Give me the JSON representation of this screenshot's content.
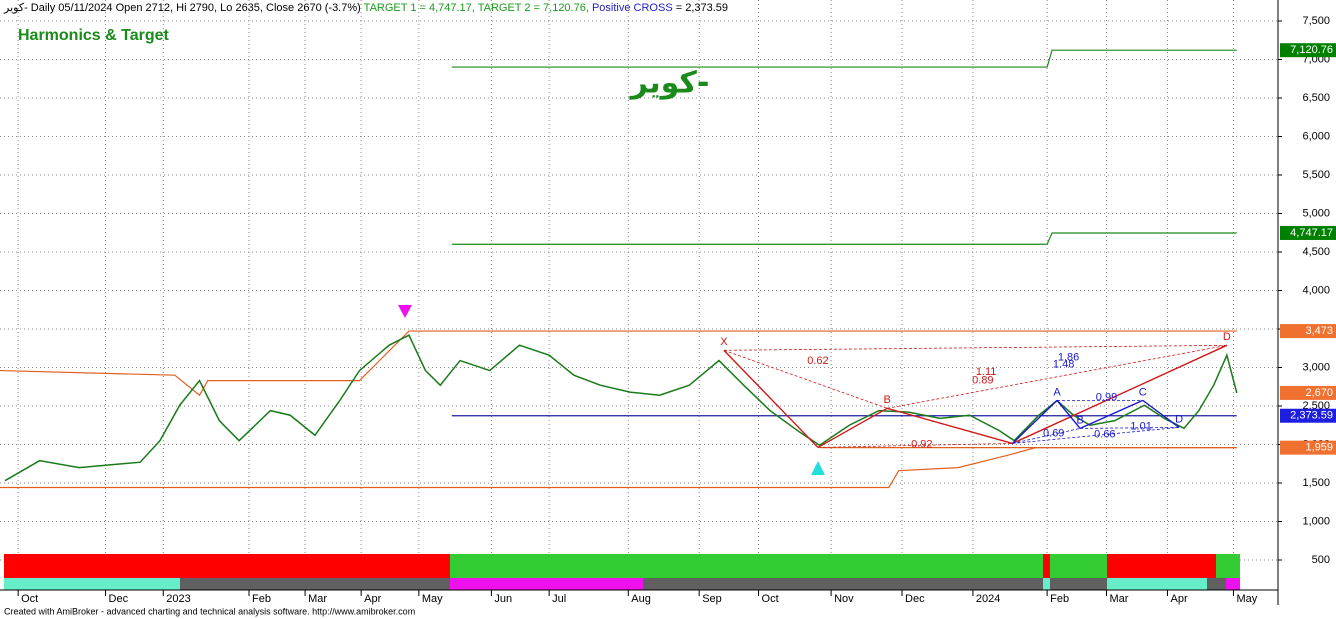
{
  "header": {
    "symbol_line": "كوير- Daily 05/11/2024 Open 2712, Hi 2790, Lo 2635, Close 2670 (-3.7%)",
    "target1": "TARGET 1 = 4,747.17,",
    "target2": "TARGET 2 = 7,120.76,",
    "cross": "Positive CROSS",
    "cross_value": "= 2,373.59"
  },
  "footer": "Created with AmiBroker - advanced charting and technical analysis software. http://www.amibroker.com",
  "chart_data": {
    "type": "line",
    "title": "Harmonics & Target",
    "subtitle": "كوير-",
    "xlim": [
      -0.3,
      77.2
    ],
    "ylim": [
      500,
      7500
    ],
    "xticks": [
      {
        "value": 0.8,
        "label": "Oct"
      },
      {
        "value": 6.1,
        "label": "Dec"
      },
      {
        "value": 9.6,
        "label": "2023"
      },
      {
        "value": 14.8,
        "label": "Feb"
      },
      {
        "value": 18.2,
        "label": "Mar"
      },
      {
        "value": 21.6,
        "label": "Apr"
      },
      {
        "value": 25.1,
        "label": "May"
      },
      {
        "value": 29.5,
        "label": "Jun"
      },
      {
        "value": 33,
        "label": "Jul"
      },
      {
        "value": 37.8,
        "label": "Aug"
      },
      {
        "value": 42.1,
        "label": "Sep"
      },
      {
        "value": 45.7,
        "label": "Oct"
      },
      {
        "value": 50.1,
        "label": "Nov"
      },
      {
        "value": 54.4,
        "label": "Dec"
      },
      {
        "value": 58.7,
        "label": "2024"
      },
      {
        "value": 63.2,
        "label": "Feb"
      },
      {
        "value": 66.8,
        "label": "Mar"
      },
      {
        "value": 70.5,
        "label": "Apr"
      },
      {
        "value": 74.5,
        "label": "May"
      }
    ],
    "yticks": [
      500,
      {
        "value": 1000,
        "label": "1,000"
      },
      {
        "value": 1500,
        "label": "1,500"
      },
      {
        "value": 2000,
        "label": "2,000"
      },
      {
        "value": 2500,
        "label": "2,500"
      },
      {
        "value": 3000,
        "label": "3,000"
      },
      {
        "value": 3500,
        "label": "3,500"
      },
      {
        "value": 4000,
        "label": "4,000"
      },
      {
        "value": 4500,
        "label": "4,500"
      },
      {
        "value": 5000,
        "label": "5,000"
      },
      {
        "value": 5500,
        "label": "5,500"
      },
      {
        "value": 6000,
        "label": "6,000"
      },
      {
        "value": 6500,
        "label": "6,500"
      },
      {
        "value": 7000,
        "label": "7,000"
      },
      {
        "value": 7500,
        "label": "7,500"
      }
    ],
    "grid": true,
    "series": [
      {
        "color": "#1a7a1a",
        "x": [
          0,
          2.1,
          4.5,
          8.2,
          9.4,
          10.6,
          11.8,
          13,
          14.2,
          16.1,
          17.3,
          18.8,
          20.3,
          21.5,
          23.3,
          24.5,
          25.5,
          26.4,
          27.6,
          29.4,
          31.2,
          33,
          34.5,
          36.1,
          37.9,
          39.7,
          41.5,
          43.3,
          44.8,
          46.4,
          48.2,
          49.4,
          51.2,
          53,
          54.8,
          56.7,
          58.5,
          60.3,
          61.2,
          62.7,
          63.8,
          64.8,
          65.8,
          67.3,
          69.1,
          70.3,
          71.5,
          72.4,
          73.3,
          74.1,
          74.7
        ],
        "values": [
          1530,
          1790,
          1700,
          1770,
          2050,
          2510,
          2830,
          2310,
          2050,
          2440,
          2380,
          2120,
          2570,
          2960,
          3290,
          3420,
          2960,
          2770,
          3090,
          2960,
          3290,
          3160,
          2900,
          2770,
          2680,
          2640,
          2770,
          3090,
          2770,
          2440,
          2160,
          1990,
          2250,
          2440,
          2420,
          2340,
          2380,
          2180,
          2050,
          2380,
          2570,
          2380,
          2250,
          2310,
          2510,
          2340,
          2210,
          2440,
          2770,
          3160,
          2670
        ]
      }
    ],
    "lines": [
      {
        "color": "#e06020",
        "x": [
          -0.3,
          10.3,
          11.8,
          12.3,
          21.5,
          24.5,
          74.7
        ],
        "values": [
          2960,
          2900,
          2640,
          2830,
          2830,
          3473,
          3473
        ]
      },
      {
        "color": "#e06020",
        "x": [
          -0.3,
          53.6,
          54.2,
          57.8,
          60.8,
          62.5,
          74.7
        ],
        "values": [
          1442,
          1442,
          1660,
          1700,
          1860,
          1959,
          1959
        ]
      },
      {
        "color": "#e06020",
        "x": [
          49.4,
          74.7
        ],
        "values": [
          1959,
          1959
        ]
      },
      {
        "color": "#1e1ea0",
        "x": [
          27.1,
          74.7
        ],
        "values": [
          2373.59,
          2373.59
        ]
      },
      {
        "color": "#1a8a1a",
        "x": [
          27.1,
          63.2,
          63.5,
          74.7
        ],
        "values": [
          4601,
          4601,
          4747.17,
          4747.17
        ]
      },
      {
        "color": "#1a8a1a",
        "x": [
          27.1,
          63.2,
          63.5,
          74.7
        ],
        "values": [
          6902,
          6902,
          7120.76,
          7120.76
        ]
      }
    ],
    "price_labels": [
      {
        "value": 7120.76,
        "label": "7,120.76",
        "color": "#008000"
      },
      {
        "value": 4747.17,
        "label": "4,747.17",
        "color": "#008000"
      },
      {
        "value": 3473,
        "label": "3,473",
        "color": "#f07030"
      },
      {
        "value": 2670,
        "label": "2,670",
        "color": "#f07030"
      },
      {
        "value": 2373.59,
        "label": "2,373.59",
        "color": "#1e1ee0"
      },
      {
        "value": 1959,
        "label": "1,959",
        "color": "#f07030"
      }
    ],
    "patterns": [
      {
        "color": "#d01818",
        "points": [
          {
            "label": "X",
            "x": 43.6,
            "y": 3223
          },
          {
            "label": null,
            "x": 49.3,
            "y": 1962
          },
          {
            "label": "B",
            "x": 53.5,
            "y": 2470
          },
          {
            "label": null,
            "x": 61.1,
            "y": 2014
          },
          {
            "label": "D",
            "x": 74.1,
            "y": 3288
          }
        ],
        "ratios": [
          {
            "label": "0.62",
            "x": 49.3,
            "y": 3080
          },
          {
            "label": "0.92",
            "x": 55.6,
            "y": 2000
          },
          {
            "label": "1.11",
            "x": 59.5,
            "y": 2940
          },
          {
            "label": "0.89",
            "x": 59.3,
            "y": 2830
          }
        ]
      },
      {
        "color": "#1818d0",
        "points": [
          {
            "label": null,
            "x": 61.1,
            "y": 2014
          },
          {
            "label": "A",
            "x": 63.8,
            "y": 2573
          },
          {
            "label": "B",
            "x": 65.2,
            "y": 2209
          },
          {
            "label": "C",
            "x": 69,
            "y": 2573
          },
          {
            "label": "D",
            "x": 71.2,
            "y": 2222
          }
        ],
        "ratios": [
          {
            "label": "1.86",
            "x": 64.5,
            "y": 3130
          },
          {
            "label": "1.48",
            "x": 64.2,
            "y": 3040
          },
          {
            "label": "0.99",
            "x": 66.8,
            "y": 2610
          },
          {
            "label": "0.69",
            "x": 63.6,
            "y": 2140
          },
          {
            "label": "0.66",
            "x": 66.7,
            "y": 2130
          },
          {
            "label": "1.01",
            "x": 68.9,
            "y": 2230
          }
        ]
      }
    ]
  }
}
